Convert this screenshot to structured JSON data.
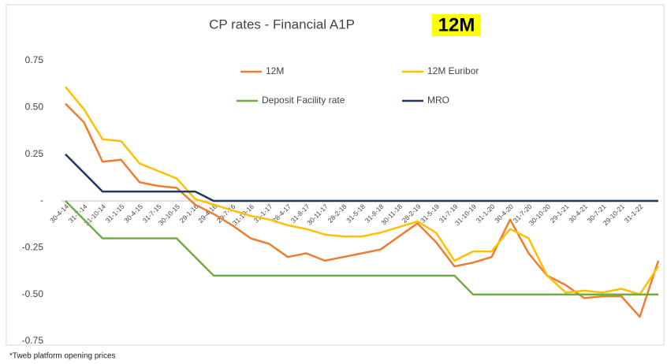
{
  "chart_data": {
    "type": "line",
    "title": "CP rates -  Financial A1P",
    "title_highlight": "12M",
    "footnote": "*Tweb platform opening prices",
    "categories": [
      "30-4-14",
      "31-7-14",
      "31-10-14",
      "31-1-15",
      "30-4-15",
      "31-7-15",
      "30-10-15",
      "29-1-16",
      "29-4-16",
      "29-7-16",
      "31-10-16",
      "31-1-17",
      "28-4-17",
      "31-8-17",
      "30-11-17",
      "28-2-18",
      "31-5-18",
      "31-8-18",
      "30-11-18",
      "28-2-19",
      "31-5-19",
      "31-7-19",
      "31-10-19",
      "31-1-20",
      "30-4-20",
      "31-7-20",
      "30-10-20",
      "29-1-21",
      "30-4-21",
      "30-7-21",
      "29-10-21",
      "31-1-22",
      null
    ],
    "series": [
      {
        "name": "12M",
        "color": "#ed7d31",
        "values": [
          0.52,
          0.42,
          0.21,
          0.22,
          0.1,
          0.08,
          0.07,
          -0.02,
          -0.07,
          -0.13,
          -0.2,
          -0.23,
          -0.3,
          -0.28,
          -0.32,
          -0.3,
          -0.28,
          -0.26,
          -0.19,
          -0.12,
          -0.22,
          -0.35,
          -0.33,
          -0.3,
          -0.1,
          -0.28,
          -0.4,
          -0.45,
          -0.52,
          -0.51,
          -0.51,
          -0.62,
          -0.32
        ]
      },
      {
        "name": "12M Euribor",
        "color": "#ffc000",
        "values": [
          0.61,
          0.49,
          0.33,
          0.32,
          0.2,
          0.16,
          0.12,
          0.01,
          -0.02,
          -0.05,
          -0.08,
          -0.1,
          -0.13,
          -0.15,
          -0.18,
          -0.19,
          -0.19,
          -0.17,
          -0.14,
          -0.11,
          -0.17,
          -0.32,
          -0.27,
          -0.27,
          -0.15,
          -0.2,
          -0.4,
          -0.49,
          -0.48,
          -0.49,
          -0.47,
          -0.5,
          -0.35
        ]
      },
      {
        "name": "Deposit Facility rate",
        "color": "#70ad47",
        "values": [
          0,
          -0.1,
          -0.2,
          -0.2,
          -0.2,
          -0.2,
          -0.2,
          -0.3,
          -0.4,
          -0.4,
          -0.4,
          -0.4,
          -0.4,
          -0.4,
          -0.4,
          -0.4,
          -0.4,
          -0.4,
          -0.4,
          -0.4,
          -0.4,
          -0.4,
          -0.5,
          -0.5,
          -0.5,
          -0.5,
          -0.5,
          -0.5,
          -0.5,
          -0.5,
          -0.5,
          -0.5,
          -0.5
        ]
      },
      {
        "name": "MRO",
        "color": "#1f3864",
        "values": [
          0.25,
          0.15,
          0.05,
          0.05,
          0.05,
          0.05,
          0.05,
          0.05,
          0,
          0,
          0,
          0,
          0,
          0,
          0,
          0,
          0,
          0,
          0,
          0,
          0,
          0,
          0,
          0,
          0,
          0,
          0,
          0,
          0,
          0,
          0,
          0,
          0
        ]
      }
    ],
    "ylim": [
      -0.75,
      0.75
    ],
    "yticks": [
      -0.75,
      {
        "value": -0.5,
        "label": "-0.50"
      },
      -0.25,
      {
        "value": 0,
        "label": "-"
      },
      0.25,
      {
        "value": 0.5,
        "label": "0.50"
      },
      0.75
    ],
    "grid": false
  }
}
